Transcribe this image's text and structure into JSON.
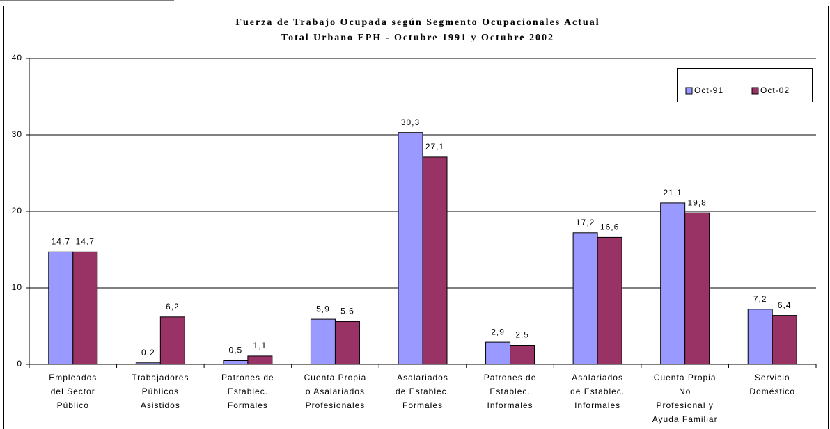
{
  "chart_data": {
    "type": "bar",
    "title": "Fuerza de Trabajo Ocupada según Segmento Ocupacionales Actual",
    "subtitle": "Total Urbano EPH - Octubre 1991 y Octubre 2002",
    "categories": [
      "Empleados\ndel Sector\nPúblico",
      "Trabajadores\nPúblicos\nAsistidos",
      "Patrones de\nEstablec.\nFormales",
      "Cuenta Propia\no Asalariados\nProfesionales",
      "Asalariados\nde Establec.\nFormales",
      "Patrones de\nEstablec.\nInformales",
      "Asalariados\nde Establec.\nInformales",
      "Cuenta Propia\nNo\nProfesional y\nAyuda Familiar",
      "Servicio\nDoméstico"
    ],
    "series": [
      {
        "name": "Oct-91",
        "color": "#9999ff",
        "values": [
          14.7,
          0.2,
          0.5,
          5.9,
          30.3,
          2.9,
          17.2,
          21.1,
          7.2
        ],
        "value_labels": [
          "14,7",
          "0,2",
          "0,5",
          "5,9",
          "30,3",
          "2,9",
          "17,2",
          "21,1",
          "7,2"
        ]
      },
      {
        "name": "Oct-02",
        "color": "#993366",
        "values": [
          14.7,
          6.2,
          1.1,
          5.6,
          27.1,
          2.5,
          16.6,
          19.8,
          6.4
        ],
        "value_labels": [
          "14,7",
          "6,2",
          "1,1",
          "5,6",
          "27,1",
          "2,5",
          "16,6",
          "19,8",
          "6,4"
        ]
      }
    ],
    "ylim": [
      0,
      40
    ],
    "yticks": [
      0,
      10,
      20,
      30,
      40
    ],
    "grid": true,
    "legend": "top-right"
  }
}
